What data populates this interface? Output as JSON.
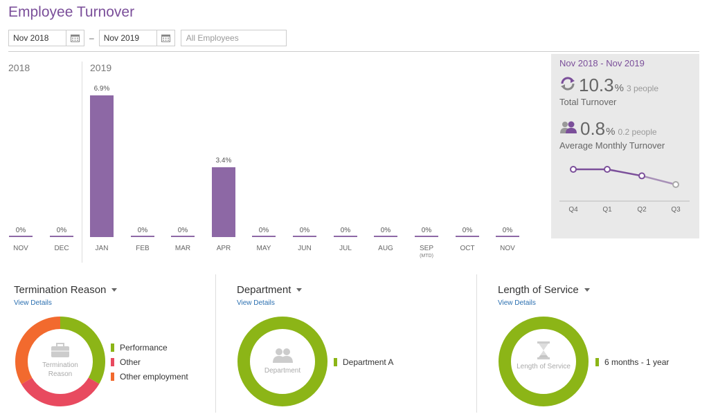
{
  "title": "Employee Turnover",
  "filters": {
    "start_date": "Nov 2018",
    "end_date": "Nov 2019",
    "separator": "–",
    "employees_placeholder": "All Employees"
  },
  "colors": {
    "accent": "#7b4f9a",
    "bar": "#8d68a5",
    "green": "#8cb517",
    "red": "#e84a5f",
    "orange": "#f26a2e",
    "link": "#2a6fb0"
  },
  "chart_data": {
    "type": "bar",
    "years": [
      "2018",
      "2019"
    ],
    "categories": [
      "NOV",
      "DEC",
      "JAN",
      "FEB",
      "MAR",
      "APR",
      "MAY",
      "JUN",
      "JUL",
      "AUG",
      "SEP",
      "OCT",
      "NOV"
    ],
    "values": [
      0,
      0,
      6.9,
      0,
      0,
      3.4,
      0,
      0,
      0,
      0,
      0,
      0,
      0
    ],
    "value_labels": [
      "0%",
      "0%",
      "6.9%",
      "0%",
      "0%",
      "3.4%",
      "0%",
      "0%",
      "0%",
      "0%",
      "0%",
      "0%",
      "0%"
    ],
    "notes": [
      "",
      "",
      "",
      "",
      "",
      "",
      "",
      "",
      "",
      "",
      "(MTD)",
      "",
      ""
    ],
    "ylim": [
      0,
      6.9
    ]
  },
  "summary": {
    "range": "Nov 2018 - Nov 2019",
    "total": {
      "value": "10.3",
      "unit": "%",
      "people": "3 people",
      "label": "Total Turnover",
      "icon": "refresh-icon"
    },
    "monthly": {
      "value": "0.8",
      "unit": "%",
      "people": "0.2 people",
      "label": "Average Monthly Turnover",
      "icon": "people-icon"
    },
    "trend": {
      "type": "line",
      "categories": [
        "Q4",
        "Q1",
        "Q2",
        "Q3"
      ],
      "values": [
        0.8,
        0.8,
        0.5,
        0.1
      ]
    }
  },
  "sections": [
    {
      "title": "Termination Reason",
      "link": "View Details",
      "center_label": "Termination Reason",
      "center_icon": "briefcase-icon",
      "legend": [
        {
          "label": "Performance",
          "color": "#8cb517",
          "value": 33.3
        },
        {
          "label": "Other",
          "color": "#e84a5f",
          "value": 33.3
        },
        {
          "label": "Other employment",
          "color": "#f26a2e",
          "value": 33.4
        }
      ]
    },
    {
      "title": "Department",
      "link": "View Details",
      "center_label": "Department",
      "center_icon": "people-icon",
      "legend": [
        {
          "label": "Department A",
          "color": "#8cb517",
          "value": 100
        }
      ]
    },
    {
      "title": "Length of Service",
      "link": "View Details",
      "center_label": "Length of Service",
      "center_icon": "hourglass-icon",
      "legend": [
        {
          "label": "6 months - 1 year",
          "color": "#8cb517",
          "value": 100
        }
      ]
    }
  ]
}
